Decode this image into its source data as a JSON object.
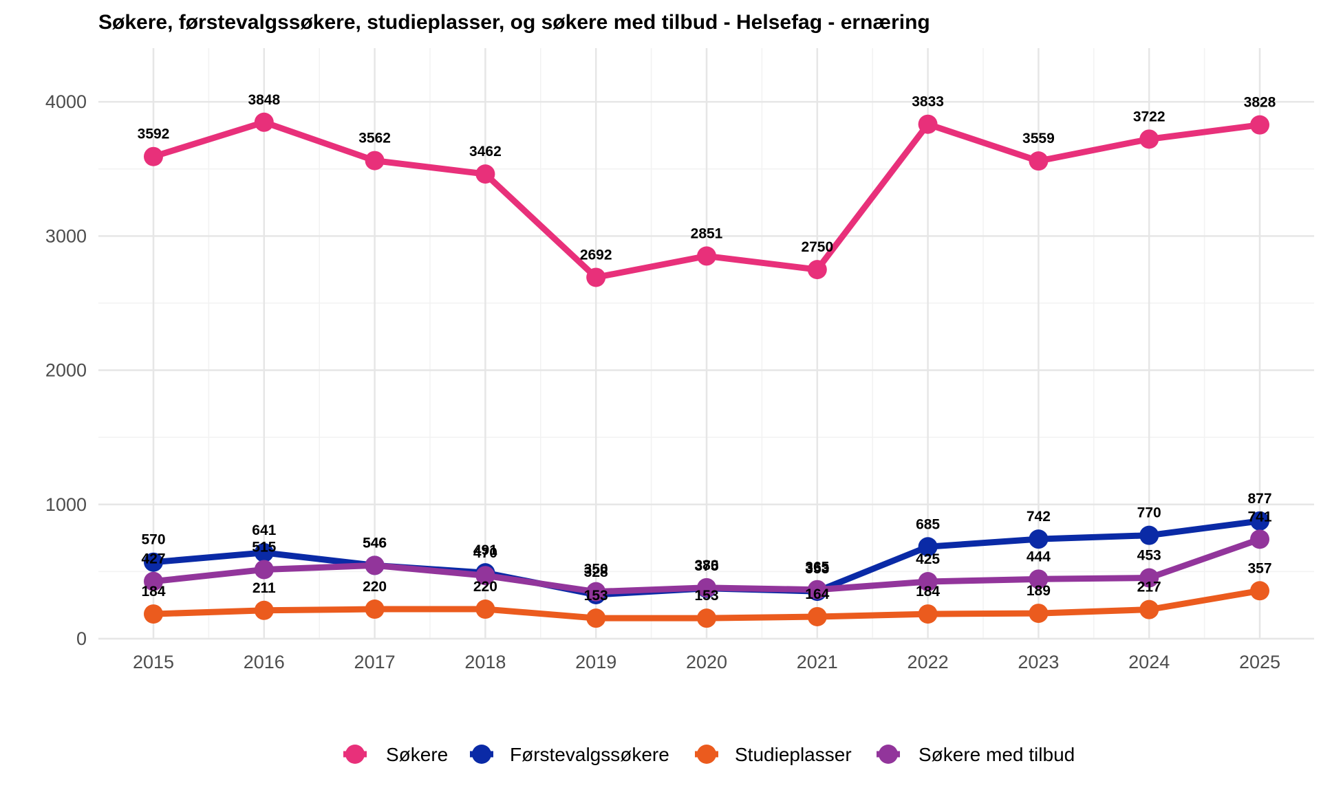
{
  "chart_data": {
    "type": "line",
    "title": "Søkere, førstevalgssøkere, studieplasser, og søkere med tilbud - Helsefag - ernæring",
    "xlabel": "",
    "ylabel": "",
    "x": [
      "2015",
      "2016",
      "2017",
      "2018",
      "2019",
      "2020",
      "2021",
      "2022",
      "2023",
      "2024",
      "2025"
    ],
    "ylim": [
      0,
      4400
    ],
    "yticks": [
      "0",
      "1000",
      "2000",
      "3000",
      "4000"
    ],
    "grid": true,
    "legend_position": "bottom",
    "series": [
      {
        "name": "Søkere",
        "color": "#e8307a",
        "values": [
          3592,
          3848,
          3562,
          3462,
          2692,
          2851,
          2750,
          3833,
          3559,
          3722,
          3828
        ]
      },
      {
        "name": "Førstevalgssøkere",
        "color": "#0a2aa6",
        "values": [
          570,
          641,
          546,
          491,
          328,
          375,
          353,
          685,
          742,
          770,
          877
        ]
      },
      {
        "name": "Studieplasser",
        "color": "#eb5b1e",
        "values": [
          184,
          211,
          220,
          220,
          153,
          153,
          164,
          184,
          189,
          217,
          357
        ]
      },
      {
        "name": "Søkere med tilbud",
        "color": "#92359b",
        "values": [
          427,
          515,
          546,
          470,
          350,
          380,
          365,
          425,
          444,
          453,
          741
        ]
      }
    ]
  }
}
